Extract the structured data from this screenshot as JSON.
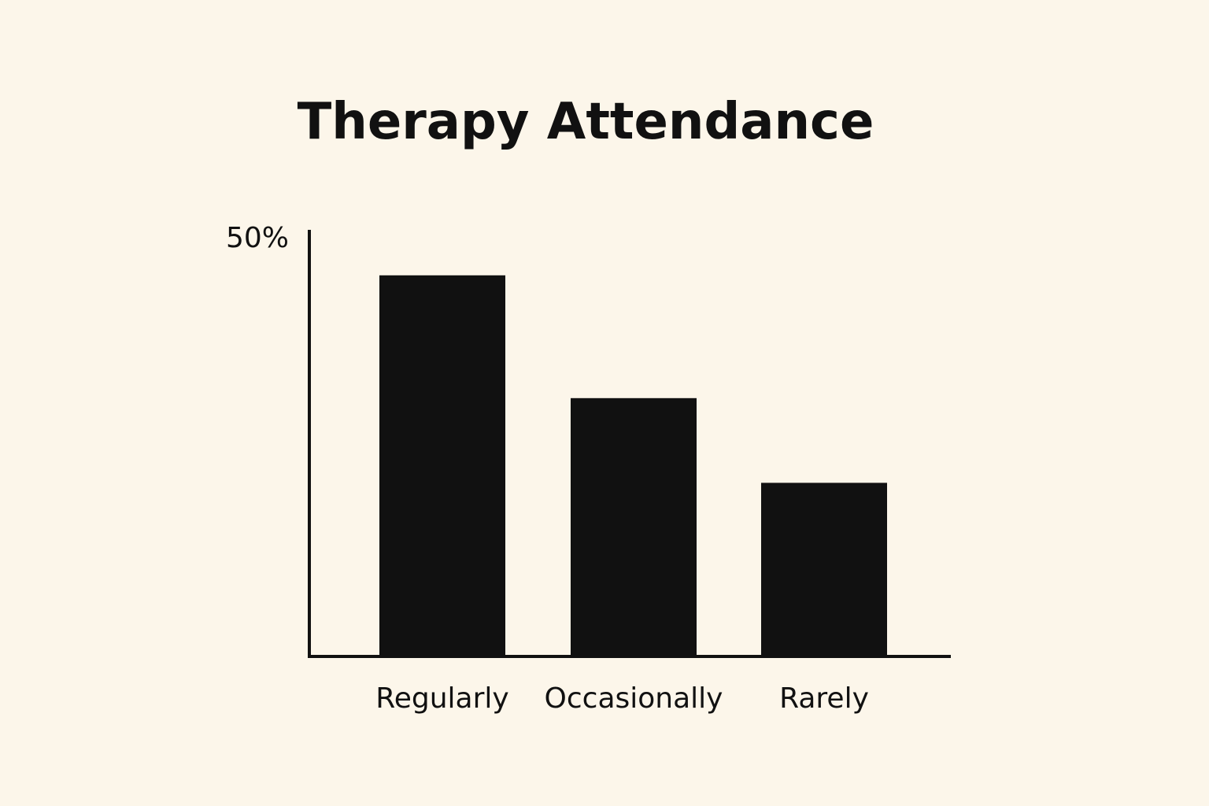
{
  "chart_data": {
    "type": "bar",
    "title": "Therapy Attendance",
    "xlabel": "",
    "ylabel": "",
    "categories": [
      "Regularly",
      "Occasionally",
      "Rarely"
    ],
    "values": [
      45,
      30.5,
      20.5
    ],
    "unit": "%",
    "ylim": [
      0,
      50
    ],
    "yticks": [
      "50%"
    ],
    "grid": false,
    "legend": "none",
    "colors": {
      "background": "#fcf6ea",
      "bar": "#111111",
      "axis": "#111111",
      "text": "#111111"
    }
  }
}
